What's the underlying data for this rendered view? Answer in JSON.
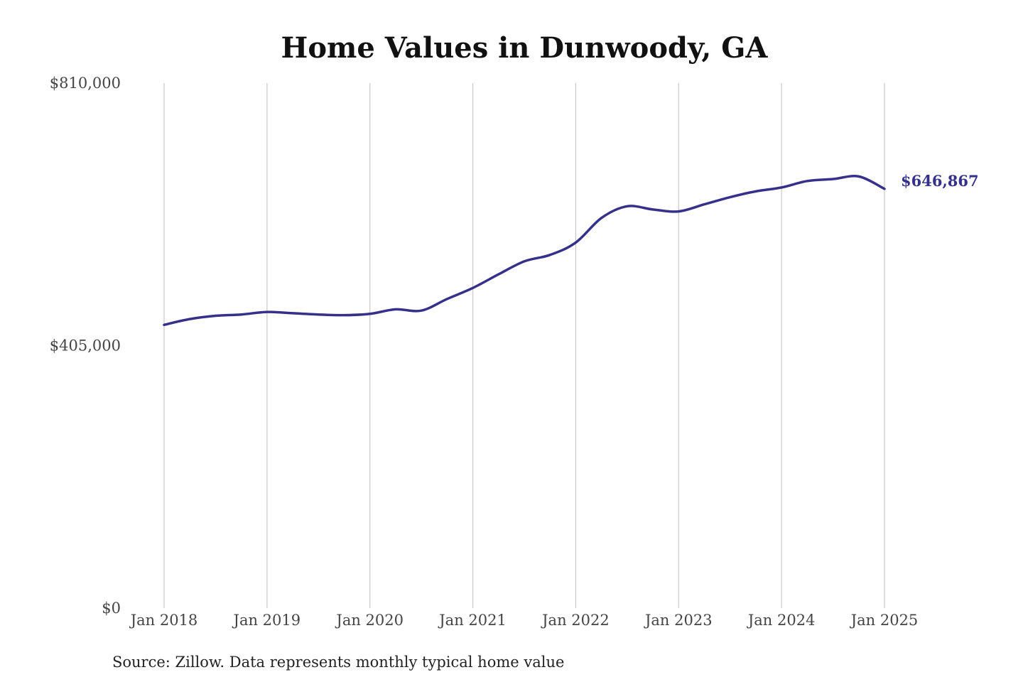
{
  "chart_data": {
    "type": "line",
    "title": "Home Values in Dunwoody, GA",
    "xlabel": "",
    "ylabel": "",
    "source": "Source: Zillow. Data represents monthly typical home value",
    "ylim": [
      0,
      810000
    ],
    "y_ticks": [
      {
        "value": 810000,
        "label": "$810,000"
      },
      {
        "value": 405000,
        "label": "$405,000"
      },
      {
        "value": 0,
        "label": "$0"
      }
    ],
    "x_range": [
      "2018-01",
      "2025-01"
    ],
    "x_ticks": [
      {
        "date": "2018-01",
        "label": "Jan 2018"
      },
      {
        "date": "2019-01",
        "label": "Jan 2019"
      },
      {
        "date": "2020-01",
        "label": "Jan 2020"
      },
      {
        "date": "2021-01",
        "label": "Jan 2021"
      },
      {
        "date": "2022-01",
        "label": "Jan 2022"
      },
      {
        "date": "2023-01",
        "label": "Jan 2023"
      },
      {
        "date": "2024-01",
        "label": "Jan 2024"
      },
      {
        "date": "2025-01",
        "label": "Jan 2025"
      }
    ],
    "grid": {
      "vertical": true,
      "horizontal": false
    },
    "series": [
      {
        "color": "#35318a",
        "x": [
          "2018-01",
          "2018-04",
          "2018-07",
          "2018-10",
          "2019-01",
          "2019-04",
          "2019-07",
          "2019-10",
          "2020-01",
          "2020-04",
          "2020-07",
          "2020-10",
          "2021-01",
          "2021-04",
          "2021-07",
          "2021-10",
          "2022-01",
          "2022-04",
          "2022-07",
          "2022-10",
          "2023-01",
          "2023-04",
          "2023-07",
          "2023-10",
          "2024-01",
          "2024-04",
          "2024-07",
          "2024-10",
          "2025-01"
        ],
        "y": [
          437000,
          446000,
          451000,
          453000,
          457000,
          455000,
          453000,
          452000,
          454000,
          461000,
          459000,
          477000,
          494000,
          515000,
          535000,
          545000,
          564000,
          602000,
          620000,
          615000,
          612000,
          623000,
          634000,
          643000,
          649000,
          659000,
          662000,
          666000,
          646867
        ]
      }
    ],
    "end_label": "$646,867"
  },
  "colors": {
    "line": "#35318a",
    "grid": "#c8c8c8",
    "title": "#111111",
    "tick_text": "#444444"
  }
}
